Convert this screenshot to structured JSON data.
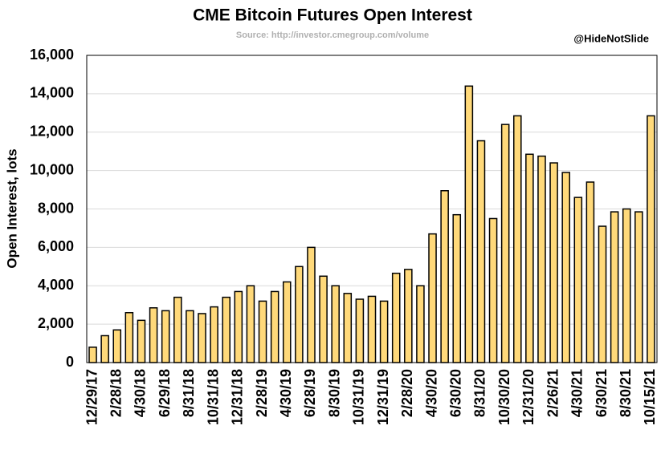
{
  "chart_data": {
    "type": "bar",
    "title": "CME Bitcoin Futures Open Interest",
    "subtitle": "Source: http://investor.cmegroup.com/volume",
    "annotation": "@HideNotSlide",
    "ylabel": "Open Interest, lots",
    "categories": [
      "12/29/17",
      null,
      "2/28/18",
      null,
      "4/30/18",
      null,
      "6/29/18",
      null,
      "8/31/18",
      null,
      "10/31/18",
      null,
      "12/31/18",
      null,
      "2/28/19",
      null,
      "4/30/19",
      null,
      "6/28/19",
      null,
      "8/30/19",
      null,
      "10/31/19",
      null,
      "12/31/19",
      null,
      "2/28/20",
      null,
      "4/30/20",
      null,
      "6/30/20",
      null,
      "8/31/20",
      null,
      "10/30/20",
      null,
      "12/31/20",
      null,
      "2/26/21",
      null,
      "4/30/21",
      null,
      "6/30/21",
      null,
      "8/30/21",
      null,
      "10/15/21"
    ],
    "values": [
      800,
      1400,
      1700,
      2600,
      2200,
      2850,
      2700,
      3400,
      2700,
      2550,
      2900,
      3400,
      3700,
      4000,
      3200,
      3700,
      4200,
      5000,
      6000,
      4500,
      4000,
      3600,
      3300,
      3450,
      3200,
      4650,
      4850,
      4000,
      6700,
      8950,
      7700,
      14400,
      11550,
      7500,
      12400,
      12850,
      10850,
      10750,
      10400,
      9900,
      8600,
      9400,
      7100,
      7850,
      8000,
      7850,
      12850
    ],
    "color": "#ffd97a",
    "ylim": [
      0,
      16000
    ],
    "yticks": [
      0,
      {
        "value": 2000,
        "label": "2,000"
      },
      {
        "value": 4000,
        "label": "4,000"
      },
      {
        "value": 6000,
        "label": "6,000"
      },
      {
        "value": 8000,
        "label": "8,000"
      },
      {
        "value": 10000,
        "label": "10,000"
      },
      {
        "value": 12000,
        "label": "12,000"
      },
      {
        "value": 14000,
        "label": "14,000"
      },
      {
        "value": 16000,
        "label": "16,000"
      }
    ],
    "grid": true
  }
}
